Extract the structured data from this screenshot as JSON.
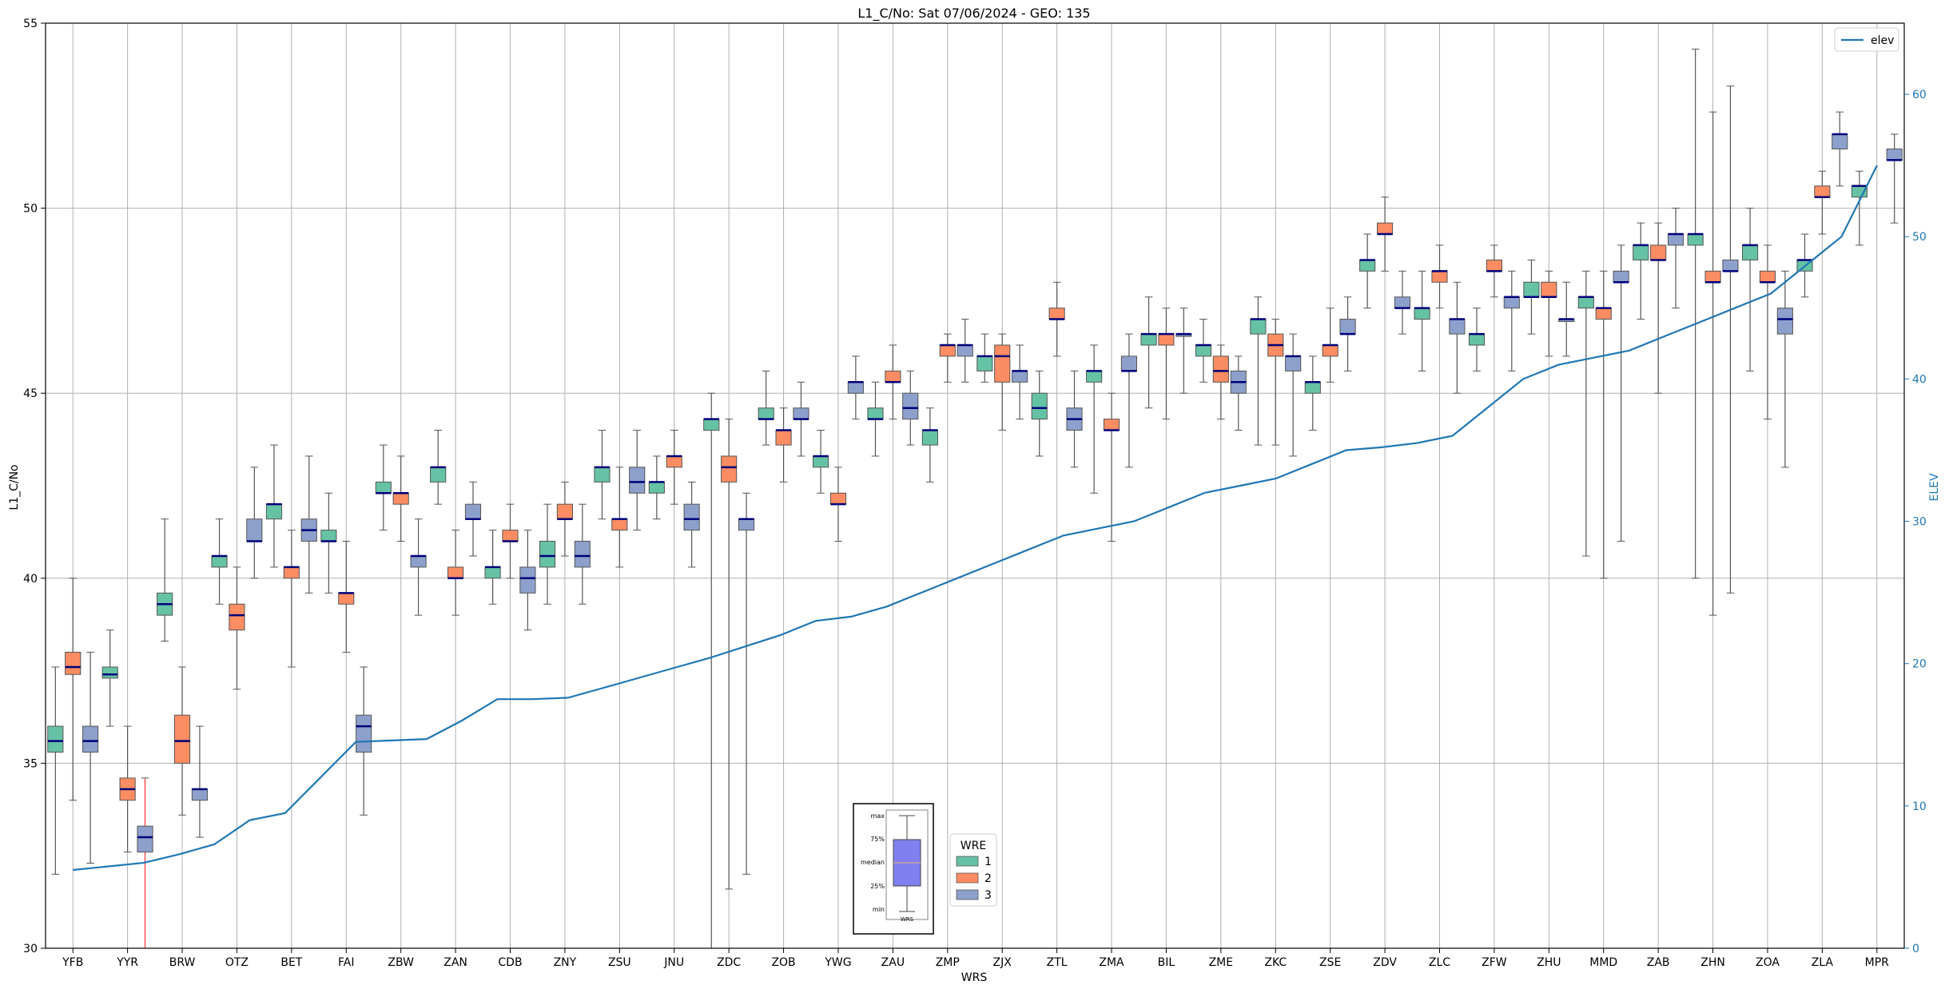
{
  "chart_data": {
    "type": "box",
    "title": "L1_C/No: Sat 07/06/2024 - GEO: 135",
    "xlabel": "WRS",
    "ylabel": "L1_C/No",
    "y2label": "ELEV",
    "ylim": [
      30,
      55
    ],
    "y2lim": [
      0,
      65
    ],
    "yticks": [
      30,
      35,
      40,
      45,
      50,
      55
    ],
    "y2ticks": [
      0,
      10,
      20,
      30,
      40,
      50,
      60
    ],
    "grid": true,
    "categories": [
      "YFB",
      "YYR",
      "BRW",
      "OTZ",
      "BET",
      "FAI",
      "ZBW",
      "ZAN",
      "CDB",
      "ZNY",
      "ZSU",
      "JNU",
      "ZDC",
      "ZOB",
      "YWG",
      "ZAU",
      "ZMP",
      "ZJX",
      "ZTL",
      "ZMA",
      "BIL",
      "ZME",
      "ZKC",
      "ZSE",
      "ZDV",
      "ZLC",
      "ZFW",
      "ZHU",
      "MMD",
      "ZAB",
      "ZHN",
      "ZOA",
      "ZLA",
      "MPR"
    ],
    "series": [
      {
        "name": "1",
        "color": "#66c2a5"
      },
      {
        "name": "2",
        "color": "#fc8d62"
      },
      {
        "name": "3",
        "color": "#8da0cb"
      }
    ],
    "boxes": [
      {
        "cat": "YFB",
        "wre": "1",
        "q1": 35.3,
        "med": 35.6,
        "q3": 36.0,
        "min": 32.0,
        "max": 37.6
      },
      {
        "cat": "YFB",
        "wre": "2",
        "q1": 37.4,
        "med": 37.6,
        "q3": 38.0,
        "min": 34.0,
        "max": 40.0
      },
      {
        "cat": "YFB",
        "wre": "3",
        "q1": 35.3,
        "med": 35.6,
        "q3": 36.0,
        "min": 32.3,
        "max": 38.0
      },
      {
        "cat": "YYR",
        "wre": "1",
        "q1": 37.3,
        "med": 37.4,
        "q3": 37.6,
        "min": 36.0,
        "max": 38.6
      },
      {
        "cat": "YYR",
        "wre": "2",
        "q1": 34.0,
        "med": 34.3,
        "q3": 34.6,
        "min": 32.6,
        "max": 36.0
      },
      {
        "cat": "YYR",
        "wre": "3",
        "q1": 32.6,
        "med": 33.0,
        "q3": 33.3,
        "min": 30.0,
        "max": 34.6,
        "whisker_color": "#ff3333"
      },
      {
        "cat": "BRW",
        "wre": "1",
        "q1": 39.0,
        "med": 39.3,
        "q3": 39.6,
        "min": 38.3,
        "max": 41.6
      },
      {
        "cat": "BRW",
        "wre": "2",
        "q1": 35.0,
        "med": 35.6,
        "q3": 36.3,
        "min": 33.6,
        "max": 37.6
      },
      {
        "cat": "BRW",
        "wre": "3",
        "q1": 34.0,
        "med": 34.3,
        "q3": 34.3,
        "min": 33.0,
        "max": 36.0
      },
      {
        "cat": "OTZ",
        "wre": "1",
        "q1": 40.3,
        "med": 40.6,
        "q3": 40.6,
        "min": 39.3,
        "max": 41.6
      },
      {
        "cat": "OTZ",
        "wre": "2",
        "q1": 38.6,
        "med": 39.0,
        "q3": 39.3,
        "min": 37.0,
        "max": 40.3
      },
      {
        "cat": "OTZ",
        "wre": "3",
        "q1": 41.0,
        "med": 41.0,
        "q3": 41.6,
        "min": 40.0,
        "max": 43.0
      },
      {
        "cat": "BET",
        "wre": "1",
        "q1": 41.6,
        "med": 42.0,
        "q3": 42.0,
        "min": 40.3,
        "max": 43.6
      },
      {
        "cat": "BET",
        "wre": "2",
        "q1": 40.0,
        "med": 40.3,
        "q3": 40.3,
        "min": 37.6,
        "max": 41.3
      },
      {
        "cat": "BET",
        "wre": "3",
        "q1": 41.0,
        "med": 41.3,
        "q3": 41.6,
        "min": 39.6,
        "max": 43.3
      },
      {
        "cat": "FAI",
        "wre": "1",
        "q1": 41.0,
        "med": 41.0,
        "q3": 41.3,
        "min": 39.6,
        "max": 42.3
      },
      {
        "cat": "FAI",
        "wre": "2",
        "q1": 39.3,
        "med": 39.6,
        "q3": 39.6,
        "min": 38.0,
        "max": 41.0
      },
      {
        "cat": "FAI",
        "wre": "3",
        "q1": 35.3,
        "med": 36.0,
        "q3": 36.3,
        "min": 33.6,
        "max": 37.6
      },
      {
        "cat": "ZBW",
        "wre": "1",
        "q1": 42.3,
        "med": 42.3,
        "q3": 42.6,
        "min": 41.3,
        "max": 43.6
      },
      {
        "cat": "ZBW",
        "wre": "2",
        "q1": 42.0,
        "med": 42.3,
        "q3": 42.3,
        "min": 41.0,
        "max": 43.3
      },
      {
        "cat": "ZBW",
        "wre": "3",
        "q1": 40.3,
        "med": 40.6,
        "q3": 40.6,
        "min": 39.0,
        "max": 41.6
      },
      {
        "cat": "ZAN",
        "wre": "1",
        "q1": 42.6,
        "med": 43.0,
        "q3": 43.0,
        "min": 42.0,
        "max": 44.0
      },
      {
        "cat": "ZAN",
        "wre": "2",
        "q1": 40.0,
        "med": 40.0,
        "q3": 40.3,
        "min": 39.0,
        "max": 41.3
      },
      {
        "cat": "ZAN",
        "wre": "3",
        "q1": 41.6,
        "med": 41.6,
        "q3": 42.0,
        "min": 40.6,
        "max": 42.6
      },
      {
        "cat": "CDB",
        "wre": "1",
        "q1": 40.0,
        "med": 40.3,
        "q3": 40.3,
        "min": 39.3,
        "max": 41.3
      },
      {
        "cat": "CDB",
        "wre": "2",
        "q1": 41.0,
        "med": 41.0,
        "q3": 41.3,
        "min": 40.0,
        "max": 42.0
      },
      {
        "cat": "CDB",
        "wre": "3",
        "q1": 39.6,
        "med": 40.0,
        "q3": 40.3,
        "min": 38.6,
        "max": 41.3
      },
      {
        "cat": "ZNY",
        "wre": "1",
        "q1": 40.3,
        "med": 40.6,
        "q3": 41.0,
        "min": 39.3,
        "max": 42.0
      },
      {
        "cat": "ZNY",
        "wre": "2",
        "q1": 41.6,
        "med": 41.6,
        "q3": 42.0,
        "min": 40.6,
        "max": 42.6
      },
      {
        "cat": "ZNY",
        "wre": "3",
        "q1": 40.3,
        "med": 40.6,
        "q3": 41.0,
        "min": 39.3,
        "max": 42.0
      },
      {
        "cat": "ZSU",
        "wre": "1",
        "q1": 42.6,
        "med": 43.0,
        "q3": 43.0,
        "min": 41.6,
        "max": 44.0
      },
      {
        "cat": "ZSU",
        "wre": "2",
        "q1": 41.3,
        "med": 41.6,
        "q3": 41.6,
        "min": 40.3,
        "max": 43.0
      },
      {
        "cat": "ZSU",
        "wre": "3",
        "q1": 42.3,
        "med": 42.6,
        "q3": 43.0,
        "min": 41.3,
        "max": 44.0
      },
      {
        "cat": "JNU",
        "wre": "1",
        "q1": 42.3,
        "med": 42.6,
        "q3": 42.6,
        "min": 41.6,
        "max": 43.3
      },
      {
        "cat": "JNU",
        "wre": "2",
        "q1": 43.0,
        "med": 43.3,
        "q3": 43.3,
        "min": 42.0,
        "max": 44.0
      },
      {
        "cat": "JNU",
        "wre": "3",
        "q1": 41.3,
        "med": 41.6,
        "q3": 42.0,
        "min": 40.3,
        "max": 42.6
      },
      {
        "cat": "ZDC",
        "wre": "1",
        "q1": 44.0,
        "med": 44.3,
        "q3": 44.3,
        "min": 30.0,
        "max": 45.0
      },
      {
        "cat": "ZDC",
        "wre": "2",
        "q1": 42.6,
        "med": 43.0,
        "q3": 43.3,
        "min": 31.6,
        "max": 44.3
      },
      {
        "cat": "ZDC",
        "wre": "3",
        "q1": 41.3,
        "med": 41.6,
        "q3": 41.6,
        "min": 32.0,
        "max": 42.3
      },
      {
        "cat": "ZOB",
        "wre": "1",
        "q1": 44.3,
        "med": 44.3,
        "q3": 44.6,
        "min": 43.6,
        "max": 45.6
      },
      {
        "cat": "ZOB",
        "wre": "2",
        "q1": 43.6,
        "med": 44.0,
        "q3": 44.0,
        "min": 42.6,
        "max": 44.6
      },
      {
        "cat": "ZOB",
        "wre": "3",
        "q1": 44.3,
        "med": 44.3,
        "q3": 44.6,
        "min": 43.3,
        "max": 45.3
      },
      {
        "cat": "YWG",
        "wre": "1",
        "q1": 43.0,
        "med": 43.3,
        "q3": 43.3,
        "min": 42.3,
        "max": 44.0
      },
      {
        "cat": "YWG",
        "wre": "2",
        "q1": 42.0,
        "med": 42.0,
        "q3": 42.3,
        "min": 41.0,
        "max": 43.0
      },
      {
        "cat": "YWG",
        "wre": "3",
        "q1": 45.0,
        "med": 45.3,
        "q3": 45.3,
        "min": 44.3,
        "max": 46.0
      },
      {
        "cat": "ZAU",
        "wre": "1",
        "q1": 44.3,
        "med": 44.3,
        "q3": 44.6,
        "min": 43.3,
        "max": 45.3
      },
      {
        "cat": "ZAU",
        "wre": "2",
        "q1": 45.3,
        "med": 45.3,
        "q3": 45.6,
        "min": 44.3,
        "max": 46.3
      },
      {
        "cat": "ZAU",
        "wre": "3",
        "q1": 44.3,
        "med": 44.6,
        "q3": 45.0,
        "min": 43.6,
        "max": 45.6
      },
      {
        "cat": "ZMP",
        "wre": "1",
        "q1": 43.6,
        "med": 44.0,
        "q3": 44.0,
        "min": 42.6,
        "max": 44.6
      },
      {
        "cat": "ZMP",
        "wre": "2",
        "q1": 46.0,
        "med": 46.3,
        "q3": 46.3,
        "min": 45.3,
        "max": 46.6
      },
      {
        "cat": "ZMP",
        "wre": "3",
        "q1": 46.0,
        "med": 46.3,
        "q3": 46.3,
        "min": 45.3,
        "max": 47.0
      },
      {
        "cat": "ZJX",
        "wre": "1",
        "q1": 45.6,
        "med": 46.0,
        "q3": 46.0,
        "min": 45.3,
        "max": 46.6
      },
      {
        "cat": "ZJX",
        "wre": "2",
        "q1": 45.3,
        "med": 46.0,
        "q3": 46.3,
        "min": 44.0,
        "max": 46.6
      },
      {
        "cat": "ZJX",
        "wre": "3",
        "q1": 45.3,
        "med": 45.6,
        "q3": 45.6,
        "min": 44.3,
        "max": 46.3
      },
      {
        "cat": "ZTL",
        "wre": "1",
        "q1": 44.3,
        "med": 44.6,
        "q3": 45.0,
        "min": 43.3,
        "max": 45.6
      },
      {
        "cat": "ZTL",
        "wre": "2",
        "q1": 47.0,
        "med": 47.0,
        "q3": 47.3,
        "min": 46.0,
        "max": 48.0
      },
      {
        "cat": "ZTL",
        "wre": "3",
        "q1": 44.0,
        "med": 44.3,
        "q3": 44.6,
        "min": 43.0,
        "max": 45.6
      },
      {
        "cat": "ZMA",
        "wre": "1",
        "q1": 45.3,
        "med": 45.6,
        "q3": 45.6,
        "min": 42.3,
        "max": 46.3
      },
      {
        "cat": "ZMA",
        "wre": "2",
        "q1": 44.0,
        "med": 44.0,
        "q3": 44.3,
        "min": 41.0,
        "max": 45.0
      },
      {
        "cat": "ZMA",
        "wre": "3",
        "q1": 45.6,
        "med": 45.6,
        "q3": 46.0,
        "min": 43.0,
        "max": 46.6
      },
      {
        "cat": "BIL",
        "wre": "1",
        "q1": 46.3,
        "med": 46.6,
        "q3": 46.6,
        "min": 44.6,
        "max": 47.6
      },
      {
        "cat": "BIL",
        "wre": "2",
        "q1": 46.3,
        "med": 46.6,
        "q3": 46.6,
        "min": 44.3,
        "max": 47.3
      },
      {
        "cat": "BIL",
        "wre": "3",
        "q1": 46.6,
        "med": 46.6,
        "q3": 46.6,
        "min": 45.0,
        "max": 47.3
      },
      {
        "cat": "ZME",
        "wre": "1",
        "q1": 46.0,
        "med": 46.3,
        "q3": 46.3,
        "min": 45.3,
        "max": 47.0
      },
      {
        "cat": "ZME",
        "wre": "2",
        "q1": 45.3,
        "med": 45.6,
        "q3": 46.0,
        "min": 44.3,
        "max": 46.3
      },
      {
        "cat": "ZME",
        "wre": "3",
        "q1": 45.0,
        "med": 45.3,
        "q3": 45.6,
        "min": 44.0,
        "max": 46.0
      },
      {
        "cat": "ZKC",
        "wre": "1",
        "q1": 46.6,
        "med": 47.0,
        "q3": 47.0,
        "min": 43.6,
        "max": 47.6
      },
      {
        "cat": "ZKC",
        "wre": "2",
        "q1": 46.0,
        "med": 46.3,
        "q3": 46.6,
        "min": 43.6,
        "max": 47.0
      },
      {
        "cat": "ZKC",
        "wre": "3",
        "q1": 45.6,
        "med": 46.0,
        "q3": 46.0,
        "min": 43.3,
        "max": 46.6
      },
      {
        "cat": "ZSE",
        "wre": "1",
        "q1": 45.0,
        "med": 45.3,
        "q3": 45.3,
        "min": 44.0,
        "max": 46.0
      },
      {
        "cat": "ZSE",
        "wre": "2",
        "q1": 46.0,
        "med": 46.3,
        "q3": 46.3,
        "min": 45.3,
        "max": 47.3
      },
      {
        "cat": "ZSE",
        "wre": "3",
        "q1": 46.6,
        "med": 46.6,
        "q3": 47.0,
        "min": 45.6,
        "max": 47.6
      },
      {
        "cat": "ZDV",
        "wre": "1",
        "q1": 48.3,
        "med": 48.6,
        "q3": 48.6,
        "min": 47.3,
        "max": 49.3
      },
      {
        "cat": "ZDV",
        "wre": "2",
        "q1": 49.3,
        "med": 49.3,
        "q3": 49.6,
        "min": 48.3,
        "max": 50.3
      },
      {
        "cat": "ZDV",
        "wre": "3",
        "q1": 47.3,
        "med": 47.3,
        "q3": 47.6,
        "min": 46.6,
        "max": 48.3
      },
      {
        "cat": "ZLC",
        "wre": "1",
        "q1": 47.0,
        "med": 47.3,
        "q3": 47.3,
        "min": 45.6,
        "max": 48.3
      },
      {
        "cat": "ZLC",
        "wre": "2",
        "q1": 48.0,
        "med": 48.3,
        "q3": 48.3,
        "min": 47.3,
        "max": 49.0
      },
      {
        "cat": "ZLC",
        "wre": "3",
        "q1": 46.6,
        "med": 47.0,
        "q3": 47.0,
        "min": 45.0,
        "max": 48.0
      },
      {
        "cat": "ZFW",
        "wre": "1",
        "q1": 46.3,
        "med": 46.6,
        "q3": 46.6,
        "min": 45.6,
        "max": 47.3
      },
      {
        "cat": "ZFW",
        "wre": "2",
        "q1": 48.3,
        "med": 48.3,
        "q3": 48.6,
        "min": 47.6,
        "max": 49.0
      },
      {
        "cat": "ZFW",
        "wre": "3",
        "q1": 47.3,
        "med": 47.6,
        "q3": 47.6,
        "min": 45.6,
        "max": 48.3
      },
      {
        "cat": "ZHU",
        "wre": "1",
        "q1": 47.6,
        "med": 47.6,
        "q3": 48.0,
        "min": 46.6,
        "max": 48.6
      },
      {
        "cat": "ZHU",
        "wre": "2",
        "q1": 47.6,
        "med": 47.6,
        "q3": 48.0,
        "min": 46.0,
        "max": 48.3
      },
      {
        "cat": "ZHU",
        "wre": "3",
        "q1": 47.0,
        "med": 47.0,
        "q3": 47.0,
        "min": 46.0,
        "max": 48.0
      },
      {
        "cat": "MMD",
        "wre": "1",
        "q1": 47.3,
        "med": 47.6,
        "q3": 47.6,
        "min": 40.6,
        "max": 48.3
      },
      {
        "cat": "MMD",
        "wre": "2",
        "q1": 47.0,
        "med": 47.3,
        "q3": 47.3,
        "min": 40.0,
        "max": 48.3
      },
      {
        "cat": "MMD",
        "wre": "3",
        "q1": 48.0,
        "med": 48.0,
        "q3": 48.3,
        "min": 41.0,
        "max": 49.0
      },
      {
        "cat": "ZAB",
        "wre": "1",
        "q1": 48.6,
        "med": 49.0,
        "q3": 49.0,
        "min": 47.0,
        "max": 49.6
      },
      {
        "cat": "ZAB",
        "wre": "2",
        "q1": 48.6,
        "med": 48.6,
        "q3": 49.0,
        "min": 45.0,
        "max": 49.6
      },
      {
        "cat": "ZAB",
        "wre": "3",
        "q1": 49.0,
        "med": 49.3,
        "q3": 49.3,
        "min": 47.3,
        "max": 50.0
      },
      {
        "cat": "ZHN",
        "wre": "1",
        "q1": 49.0,
        "med": 49.3,
        "q3": 49.3,
        "min": 40.0,
        "max": 54.3
      },
      {
        "cat": "ZHN",
        "wre": "2",
        "q1": 48.0,
        "med": 48.0,
        "q3": 48.3,
        "min": 39.0,
        "max": 52.6
      },
      {
        "cat": "ZHN",
        "wre": "3",
        "q1": 48.3,
        "med": 48.3,
        "q3": 48.6,
        "min": 39.6,
        "max": 53.3
      },
      {
        "cat": "ZOA",
        "wre": "1",
        "q1": 48.6,
        "med": 49.0,
        "q3": 49.0,
        "min": 45.6,
        "max": 50.0
      },
      {
        "cat": "ZOA",
        "wre": "2",
        "q1": 48.0,
        "med": 48.0,
        "q3": 48.3,
        "min": 44.3,
        "max": 49.0
      },
      {
        "cat": "ZOA",
        "wre": "3",
        "q1": 46.6,
        "med": 47.0,
        "q3": 47.3,
        "min": 43.0,
        "max": 48.3
      },
      {
        "cat": "ZLA",
        "wre": "1",
        "q1": 48.3,
        "med": 48.6,
        "q3": 48.6,
        "min": 47.6,
        "max": 49.3
      },
      {
        "cat": "ZLA",
        "wre": "2",
        "q1": 50.3,
        "med": 50.3,
        "q3": 50.6,
        "min": 49.3,
        "max": 51.0
      },
      {
        "cat": "ZLA",
        "wre": "3",
        "q1": 51.6,
        "med": 52.0,
        "q3": 52.0,
        "min": 50.6,
        "max": 52.6
      },
      {
        "cat": "MPR",
        "wre": "1",
        "q1": 50.3,
        "med": 50.6,
        "q3": 50.6,
        "min": 49.0,
        "max": 51.0
      },
      {
        "cat": "MPR",
        "wre": "3",
        "q1": 51.3,
        "med": 51.3,
        "q3": 51.6,
        "min": 49.6,
        "max": 52.0
      }
    ],
    "elev_line": {
      "name": "elev",
      "color": "#1f77b4",
      "values": [
        5.5,
        6.0,
        6.6,
        7.3,
        9.0,
        9.5,
        12.0,
        14.5,
        14.6,
        14.7,
        16.0,
        17.5,
        17.5,
        17.6,
        18.3,
        19.0,
        19.7,
        20.4,
        21.2,
        22.0,
        23.0,
        23.3,
        24.0,
        25.0,
        26.0,
        27.0,
        28.0,
        29.0,
        29.5,
        30.0,
        31.0,
        32.0,
        32.5,
        33.0,
        34.0,
        35.0,
        35.2,
        35.5,
        36.0,
        38.0,
        40.0,
        41.0,
        41.5,
        42.0,
        43.0,
        44.0,
        45.0,
        46.0,
        48.0,
        50.0,
        55.0
      ],
      "x": [
        0,
        1,
        1.5,
        2,
        2.5,
        3,
        3.5,
        4,
        4.5,
        5,
        5.5,
        6,
        6.5,
        7,
        7.5,
        8,
        8.5,
        9,
        9.5,
        10,
        10.5,
        11,
        11.5,
        12,
        12.5,
        13,
        13.5,
        14,
        14.5,
        15,
        15.5,
        16,
        16.5,
        17,
        17.5,
        18,
        18.5,
        19,
        19.5,
        20,
        20.5,
        21,
        21.5,
        22,
        22.5,
        23,
        23.5,
        24,
        24.5,
        25,
        25.5
      ]
    },
    "legend": {
      "title": "WRE",
      "entries": [
        "1",
        "2",
        "3"
      ],
      "placement": "bottom-center"
    },
    "line_legend": {
      "entries": [
        "elev"
      ],
      "placement": "top-right"
    },
    "key_box": {
      "labels": [
        "max",
        "75%",
        "median",
        "25%",
        "min"
      ],
      "xlabel": "WRS"
    }
  }
}
